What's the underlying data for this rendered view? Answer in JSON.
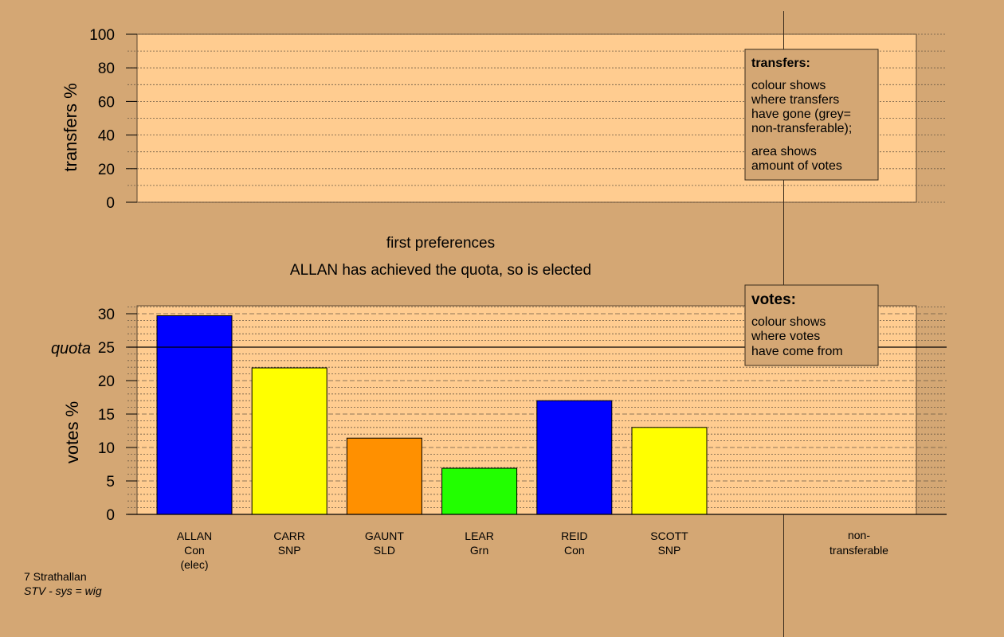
{
  "colors": {
    "background": "#d4a774",
    "plot_bg": "#ffcc90",
    "legend_bg": "#d4a774",
    "Con": "#0000ff",
    "SNP": "#ffff00",
    "SLD": "#ff9000",
    "Grn": "#22ff00"
  },
  "top_chart": {
    "ylabel": "transfers %",
    "yticks": [
      "0",
      "20",
      "40",
      "60",
      "80",
      "100"
    ],
    "legend": {
      "title": "transfers:",
      "lines1": [
        "colour shows",
        "where transfers",
        "have gone (grey=",
        "non-transferable);"
      ],
      "lines2": [
        "area shows",
        "amount of votes"
      ]
    }
  },
  "stage": {
    "line1": "first preferences",
    "line2": "ALLAN has achieved the quota, so is elected"
  },
  "chart_data": {
    "type": "bar",
    "ylabel": "votes %",
    "ylim": [
      0,
      31
    ],
    "yticks": [
      "0",
      "5",
      "10",
      "15",
      "20",
      "25",
      "30"
    ],
    "quota": {
      "label": "quota",
      "value": 25
    },
    "categories": [
      {
        "name": "ALLAN",
        "party": "Con",
        "note": "(elec)",
        "value": 29.7,
        "color": "#0000ff"
      },
      {
        "name": "CARR",
        "party": "SNP",
        "note": "",
        "value": 21.9,
        "color": "#ffff00"
      },
      {
        "name": "GAUNT",
        "party": "SLD",
        "note": "",
        "value": 11.4,
        "color": "#ff9000"
      },
      {
        "name": "LEAR",
        "party": "Grn",
        "note": "",
        "value": 6.9,
        "color": "#22ff00"
      },
      {
        "name": "REID",
        "party": "Con",
        "note": "",
        "value": 17.0,
        "color": "#0000ff"
      },
      {
        "name": "SCOTT",
        "party": "SNP",
        "note": "",
        "value": 13.0,
        "color": "#ffff00"
      }
    ],
    "nontransferable_label": [
      "non-",
      "transferable"
    ],
    "legend": {
      "title": "votes:",
      "lines": [
        "colour shows",
        "where votes",
        "have come from"
      ]
    }
  },
  "footer": {
    "line1": "7 Strathallan",
    "line2": "STV - sys = wig"
  }
}
